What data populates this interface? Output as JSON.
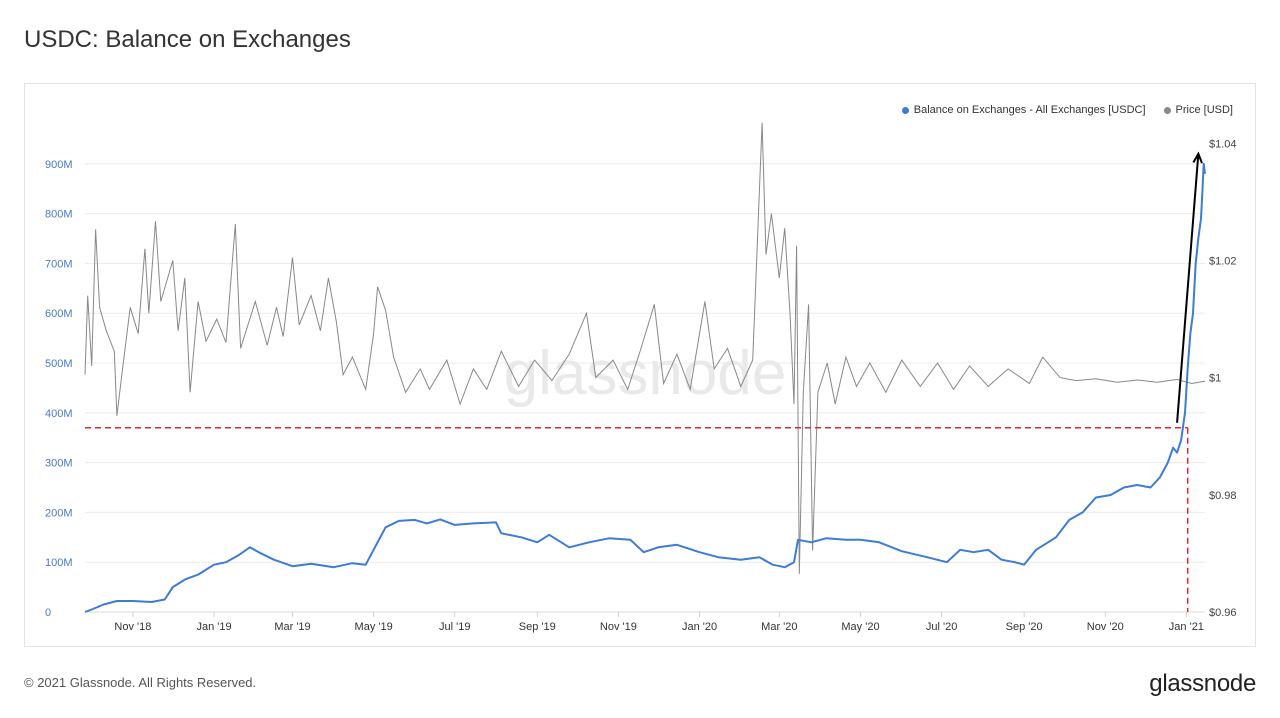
{
  "title": "USDC: Balance on Exchanges",
  "footer": "© 2021 Glassnode. All Rights Reserved.",
  "brand": "glassnode",
  "watermark": "glassnode",
  "colors": {
    "balance": "#3d7bd4",
    "price": "#888888",
    "annotation": "#e0282e",
    "arrow": "#000000"
  },
  "chart_data": {
    "type": "line",
    "legend": [
      {
        "label": "Balance on Exchanges - All Exchanges [USDC]",
        "color": "#3d7bd4"
      },
      {
        "label": "Price [USD]",
        "color": "#888888"
      }
    ],
    "legend_position": "top-right",
    "grid": true,
    "x_ticks": [
      "Nov '18",
      "Jan '19",
      "Mar '19",
      "May '19",
      "Jul '19",
      "Sep '19",
      "Nov '19",
      "Jan '20",
      "Mar '20",
      "May '20",
      "Jul '20",
      "Sep '20",
      "Nov '20",
      "Jan '21"
    ],
    "x_range": [
      "2018-09-26",
      "2021-01-15"
    ],
    "y_left": {
      "label": "",
      "ylim": [
        0,
        1000000000
      ],
      "ticks": [
        "0",
        "100M",
        "200M",
        "300M",
        "400M",
        "500M",
        "600M",
        "700M",
        "800M",
        "900M"
      ]
    },
    "y_right": {
      "label": "",
      "ylim": [
        0.96,
        1.045
      ],
      "ticks": [
        "$0.96",
        "$0.98",
        "$1",
        "$1.02",
        "$1.04"
      ]
    },
    "series": [
      {
        "name": "Balance on Exchanges - All Exchanges [USDC]",
        "axis": "left",
        "points": [
          [
            "2018-09-26",
            0
          ],
          [
            "2018-10-01",
            5000000
          ],
          [
            "2018-10-10",
            15000000
          ],
          [
            "2018-10-20",
            22000000
          ],
          [
            "2018-11-01",
            22000000
          ],
          [
            "2018-11-15",
            20000000
          ],
          [
            "2018-11-25",
            25000000
          ],
          [
            "2018-12-01",
            50000000
          ],
          [
            "2018-12-10",
            65000000
          ],
          [
            "2018-12-20",
            75000000
          ],
          [
            "2019-01-01",
            95000000
          ],
          [
            "2019-01-10",
            100000000
          ],
          [
            "2019-01-20",
            115000000
          ],
          [
            "2019-01-28",
            130000000
          ],
          [
            "2019-02-05",
            118000000
          ],
          [
            "2019-02-15",
            105000000
          ],
          [
            "2019-03-01",
            92000000
          ],
          [
            "2019-03-15",
            97000000
          ],
          [
            "2019-04-01",
            90000000
          ],
          [
            "2019-04-15",
            98000000
          ],
          [
            "2019-04-25",
            95000000
          ],
          [
            "2019-05-01",
            125000000
          ],
          [
            "2019-05-10",
            170000000
          ],
          [
            "2019-05-20",
            183000000
          ],
          [
            "2019-06-01",
            185000000
          ],
          [
            "2019-06-10",
            178000000
          ],
          [
            "2019-06-20",
            186000000
          ],
          [
            "2019-07-01",
            175000000
          ],
          [
            "2019-07-15",
            178000000
          ],
          [
            "2019-08-01",
            180000000
          ],
          [
            "2019-08-05",
            158000000
          ],
          [
            "2019-08-20",
            150000000
          ],
          [
            "2019-09-01",
            140000000
          ],
          [
            "2019-09-10",
            155000000
          ],
          [
            "2019-09-25",
            130000000
          ],
          [
            "2019-10-10",
            140000000
          ],
          [
            "2019-10-25",
            148000000
          ],
          [
            "2019-11-10",
            145000000
          ],
          [
            "2019-11-20",
            120000000
          ],
          [
            "2019-12-01",
            130000000
          ],
          [
            "2019-12-15",
            135000000
          ],
          [
            "2020-01-01",
            120000000
          ],
          [
            "2020-01-15",
            110000000
          ],
          [
            "2020-02-01",
            105000000
          ],
          [
            "2020-02-15",
            110000000
          ],
          [
            "2020-02-25",
            95000000
          ],
          [
            "2020-03-05",
            90000000
          ],
          [
            "2020-03-12",
            100000000
          ],
          [
            "2020-03-15",
            145000000
          ],
          [
            "2020-03-25",
            140000000
          ],
          [
            "2020-04-05",
            148000000
          ],
          [
            "2020-04-20",
            145000000
          ],
          [
            "2020-05-01",
            145000000
          ],
          [
            "2020-05-15",
            140000000
          ],
          [
            "2020-06-01",
            122000000
          ],
          [
            "2020-06-20",
            110000000
          ],
          [
            "2020-07-05",
            100000000
          ],
          [
            "2020-07-15",
            125000000
          ],
          [
            "2020-07-25",
            120000000
          ],
          [
            "2020-08-05",
            125000000
          ],
          [
            "2020-08-15",
            105000000
          ],
          [
            "2020-08-25",
            100000000
          ],
          [
            "2020-09-01",
            95000000
          ],
          [
            "2020-09-10",
            125000000
          ],
          [
            "2020-09-25",
            150000000
          ],
          [
            "2020-10-05",
            185000000
          ],
          [
            "2020-10-15",
            200000000
          ],
          [
            "2020-10-25",
            230000000
          ],
          [
            "2020-11-05",
            235000000
          ],
          [
            "2020-11-15",
            250000000
          ],
          [
            "2020-11-25",
            255000000
          ],
          [
            "2020-12-05",
            250000000
          ],
          [
            "2020-12-12",
            270000000
          ],
          [
            "2020-12-18",
            300000000
          ],
          [
            "2020-12-22",
            330000000
          ],
          [
            "2020-12-25",
            320000000
          ],
          [
            "2020-12-28",
            345000000
          ],
          [
            "2020-12-31",
            400000000
          ],
          [
            "2021-01-02",
            490000000
          ],
          [
            "2021-01-04",
            560000000
          ],
          [
            "2021-01-06",
            600000000
          ],
          [
            "2021-01-08",
            700000000
          ],
          [
            "2021-01-10",
            750000000
          ],
          [
            "2021-01-12",
            790000000
          ],
          [
            "2021-01-13",
            840000000
          ],
          [
            "2021-01-14",
            900000000
          ],
          [
            "2021-01-15",
            880000000
          ]
        ]
      },
      {
        "name": "Price [USD]",
        "axis": "right",
        "points": [
          [
            "2018-09-26",
            1.0005
          ],
          [
            "2018-09-28",
            1.014
          ],
          [
            "2018-10-01",
            1.002
          ],
          [
            "2018-10-04",
            1.0253
          ],
          [
            "2018-10-07",
            1.012
          ],
          [
            "2018-10-12",
            1.008
          ],
          [
            "2018-10-18",
            1.0045
          ],
          [
            "2018-10-20",
            0.9935
          ],
          [
            "2018-10-24",
            1.001
          ],
          [
            "2018-10-30",
            1.012
          ],
          [
            "2018-11-05",
            1.0075
          ],
          [
            "2018-11-10",
            1.022
          ],
          [
            "2018-11-13",
            1.011
          ],
          [
            "2018-11-18",
            1.0267
          ],
          [
            "2018-11-22",
            1.013
          ],
          [
            "2018-12-01",
            1.02
          ],
          [
            "2018-12-05",
            1.008
          ],
          [
            "2018-12-10",
            1.017
          ],
          [
            "2018-12-14",
            0.9975
          ],
          [
            "2018-12-20",
            1.013
          ],
          [
            "2018-12-26",
            1.0062
          ],
          [
            "2019-01-03",
            1.01
          ],
          [
            "2019-01-10",
            1.006
          ],
          [
            "2019-01-17",
            1.0262
          ],
          [
            "2019-01-21",
            1.005
          ],
          [
            "2019-02-01",
            1.013
          ],
          [
            "2019-02-10",
            1.0055
          ],
          [
            "2019-02-17",
            1.012
          ],
          [
            "2019-02-22",
            1.007
          ],
          [
            "2019-03-01",
            1.0205
          ],
          [
            "2019-03-06",
            1.009
          ],
          [
            "2019-03-15",
            1.014
          ],
          [
            "2019-03-22",
            1.008
          ],
          [
            "2019-03-28",
            1.017
          ],
          [
            "2019-04-03",
            1.0095
          ],
          [
            "2019-04-08",
            1.0005
          ],
          [
            "2019-04-15",
            1.0035
          ],
          [
            "2019-04-25",
            0.998
          ],
          [
            "2019-05-01",
            1.0075
          ],
          [
            "2019-05-04",
            1.0155
          ],
          [
            "2019-05-10",
            1.0115
          ],
          [
            "2019-05-16",
            1.0035
          ],
          [
            "2019-05-25",
            0.9975
          ],
          [
            "2019-06-05",
            1.0015
          ],
          [
            "2019-06-12",
            0.998
          ],
          [
            "2019-06-25",
            1.003
          ],
          [
            "2019-07-05",
            0.9955
          ],
          [
            "2019-07-15",
            1.0015
          ],
          [
            "2019-07-25",
            0.998
          ],
          [
            "2019-08-05",
            1.0045
          ],
          [
            "2019-08-18",
            0.9985
          ],
          [
            "2019-08-30",
            1.003
          ],
          [
            "2019-09-12",
            0.9995
          ],
          [
            "2019-09-25",
            1.004
          ],
          [
            "2019-10-08",
            1.011
          ],
          [
            "2019-10-15",
            1.0
          ],
          [
            "2019-10-28",
            1.003
          ],
          [
            "2019-11-08",
            0.998
          ],
          [
            "2019-11-18",
            1.005
          ],
          [
            "2019-11-28",
            1.0125
          ],
          [
            "2019-12-05",
            0.999
          ],
          [
            "2019-12-15",
            1.004
          ],
          [
            "2019-12-25",
            0.998
          ],
          [
            "2020-01-05",
            1.013
          ],
          [
            "2020-01-12",
            1.0015
          ],
          [
            "2020-01-22",
            1.005
          ],
          [
            "2020-02-01",
            0.9985
          ],
          [
            "2020-02-10",
            1.003
          ],
          [
            "2020-02-17",
            1.0435
          ],
          [
            "2020-02-20",
            1.021
          ],
          [
            "2020-02-24",
            1.028
          ],
          [
            "2020-03-01",
            1.017
          ],
          [
            "2020-03-05",
            1.0255
          ],
          [
            "2020-03-09",
            1.011
          ],
          [
            "2020-03-12",
            0.9955
          ],
          [
            "2020-03-14",
            1.0225
          ],
          [
            "2020-03-16",
            0.9665
          ],
          [
            "2020-03-19",
            0.9975
          ],
          [
            "2020-03-23",
            1.0125
          ],
          [
            "2020-03-26",
            0.9705
          ],
          [
            "2020-03-30",
            0.9975
          ],
          [
            "2020-04-06",
            1.0025
          ],
          [
            "2020-04-12",
            0.9955
          ],
          [
            "2020-04-20",
            1.0035
          ],
          [
            "2020-04-28",
            0.9985
          ],
          [
            "2020-05-08",
            1.0025
          ],
          [
            "2020-05-20",
            0.9975
          ],
          [
            "2020-06-01",
            1.003
          ],
          [
            "2020-06-15",
            0.9985
          ],
          [
            "2020-06-28",
            1.0025
          ],
          [
            "2020-07-10",
            0.998
          ],
          [
            "2020-07-22",
            1.002
          ],
          [
            "2020-08-05",
            0.9985
          ],
          [
            "2020-08-20",
            1.0015
          ],
          [
            "2020-09-05",
            0.999
          ],
          [
            "2020-09-15",
            1.0035
          ],
          [
            "2020-09-28",
            1.0
          ],
          [
            "2020-10-10",
            0.9995
          ],
          [
            "2020-10-25",
            0.9998
          ],
          [
            "2020-11-10",
            0.9992
          ],
          [
            "2020-11-25",
            0.9996
          ],
          [
            "2020-12-10",
            0.9992
          ],
          [
            "2020-12-25",
            0.9997
          ],
          [
            "2021-01-05",
            0.999
          ],
          [
            "2021-01-15",
            0.9994
          ]
        ]
      }
    ],
    "annotations": [
      {
        "type": "dashed-horizontal",
        "axis": "left",
        "y": 370000000,
        "from": "2018-09-26",
        "to": "2021-01-02",
        "color": "#e0282e"
      },
      {
        "type": "dashed-vertical",
        "x": "2021-01-02",
        "from_y": 370000000,
        "to_y": 0,
        "color": "#e0282e"
      },
      {
        "type": "arrow",
        "from": [
          "2020-12-25",
          380000000
        ],
        "to": [
          "2021-01-10",
          920000000
        ],
        "color": "#000000"
      }
    ]
  }
}
